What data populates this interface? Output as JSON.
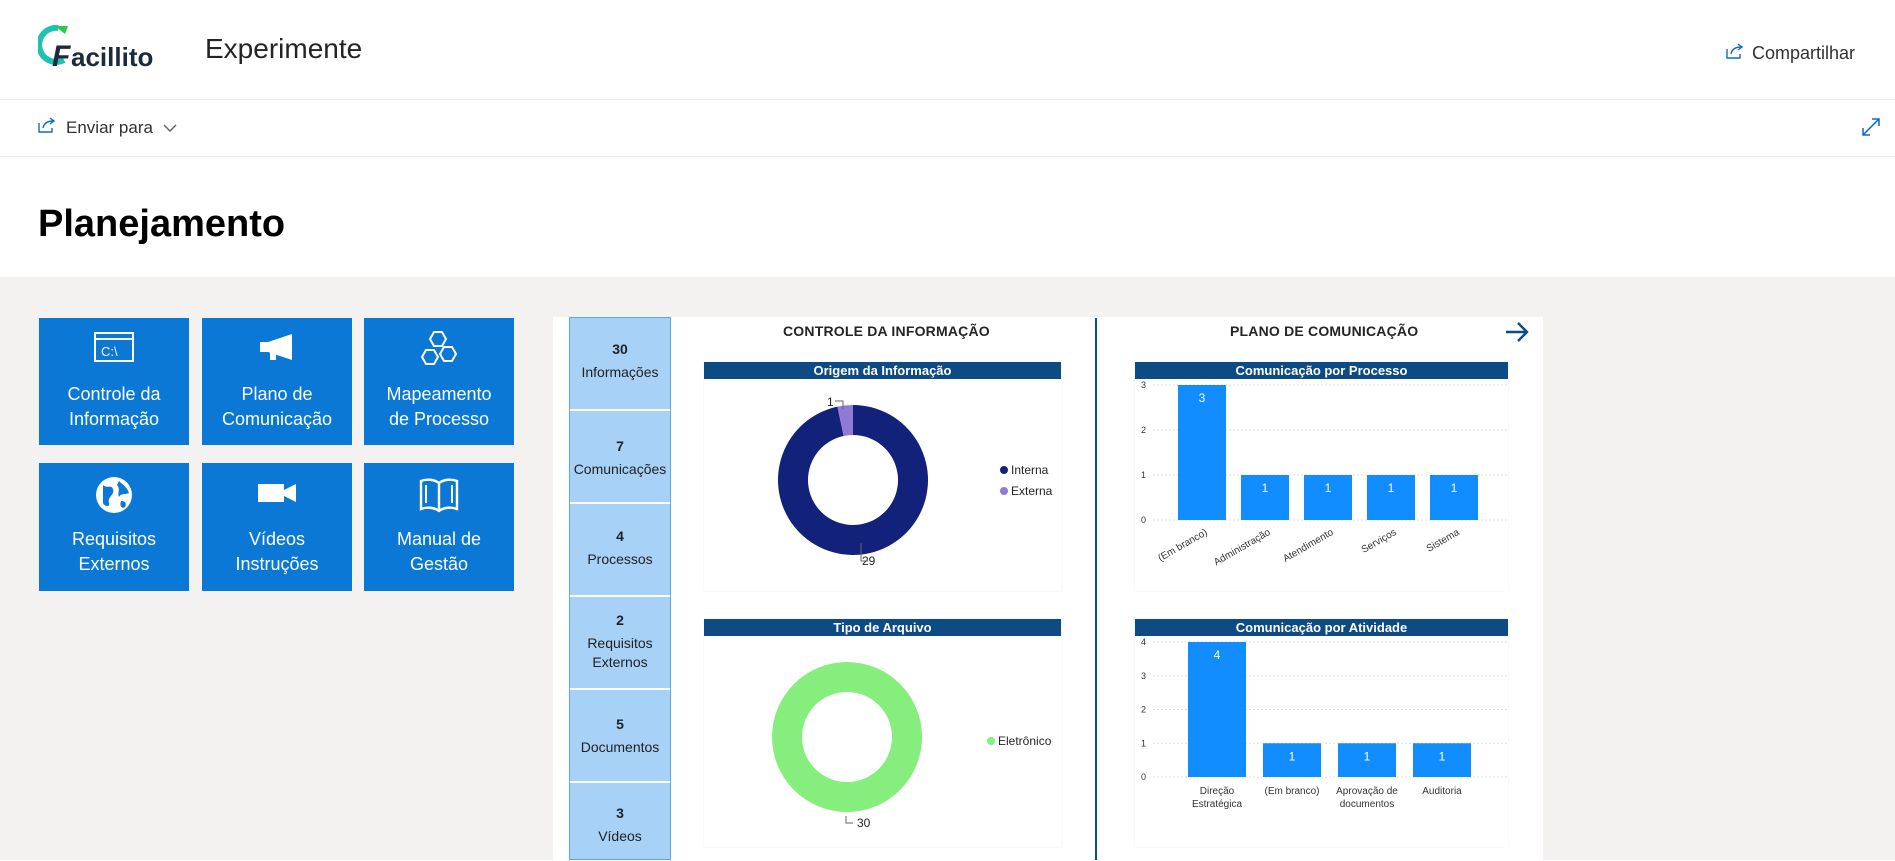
{
  "header": {
    "logo_text": "Facillito",
    "site_title": "Experimente",
    "share_label": "Compartilhar",
    "logo_colors": {
      "main": "#1c2a3a",
      "accent": "#1fc2b0",
      "arrow": "#2cc84e"
    }
  },
  "command_bar": {
    "send_label": "Enviar para"
  },
  "page": {
    "title": "Planejamento"
  },
  "tiles": [
    {
      "label_l1": "Controle da",
      "label_l2": "Informação",
      "icon": "terminal-icon"
    },
    {
      "label_l1": "Plano de",
      "label_l2": "Comunicação",
      "icon": "megaphone-icon"
    },
    {
      "label_l1": "Mapeamento",
      "label_l2": "de Processo",
      "icon": "hexagons-icon"
    },
    {
      "label_l1": "Requisitos",
      "label_l2": "Externos",
      "icon": "globe-icon"
    },
    {
      "label_l1": "Vídeos",
      "label_l2": "Instruções",
      "icon": "video-camera-icon"
    },
    {
      "label_l1": "Manual de",
      "label_l2": "Gestão",
      "icon": "book-icon"
    }
  ],
  "kpis": [
    {
      "value": "30",
      "label_l1": "Informações",
      "label_l2": ""
    },
    {
      "value": "7",
      "label_l1": "Comunicações",
      "label_l2": ""
    },
    {
      "value": "4",
      "label_l1": "Processos",
      "label_l2": ""
    },
    {
      "value": "2",
      "label_l1": "Requisitos",
      "label_l2": "Externos"
    },
    {
      "value": "5",
      "label_l1": "Documentos",
      "label_l2": ""
    },
    {
      "value": "3",
      "label_l1": "Vídeos",
      "label_l2": ""
    }
  ],
  "sections": {
    "left_title": "CONTROLE DA INFORMAÇÃO",
    "right_title": "PLANO DE COMUNICAÇÃO"
  },
  "chart_data": [
    {
      "type": "pie",
      "title": "Origem da Informação",
      "categories": [
        "Interna",
        "Externa"
      ],
      "values": [
        29,
        1
      ],
      "colors": [
        "#12217a",
        "#8f7bd6"
      ],
      "legend": "right"
    },
    {
      "type": "pie",
      "title": "Tipo de Arquivo",
      "categories": [
        "Eletrônico"
      ],
      "values": [
        30
      ],
      "colors": [
        "#85ee7c"
      ],
      "legend": "right"
    },
    {
      "type": "bar",
      "title": "Comunicação por Processo",
      "categories": [
        "(Em branco)",
        "Administração",
        "Atendimento",
        "Serviços",
        "Sistema"
      ],
      "values": [
        3,
        1,
        1,
        1,
        1
      ],
      "ylim": [
        0,
        3
      ],
      "yticks": [
        "0",
        "1",
        "2",
        "3"
      ],
      "color": "#118dff",
      "grid": true
    },
    {
      "type": "bar",
      "title": "Comunicação por Atividade",
      "categories": [
        [
          "Direção",
          "Estratégica"
        ],
        [
          "(Em branco)"
        ],
        [
          "Aprovação de",
          "documentos"
        ],
        [
          "Auditoria"
        ]
      ],
      "values": [
        4,
        1,
        1,
        1
      ],
      "ylim": [
        0,
        4
      ],
      "yticks": [
        "0",
        "1",
        "2",
        "3",
        "4"
      ],
      "color": "#118dff",
      "grid": true
    }
  ]
}
